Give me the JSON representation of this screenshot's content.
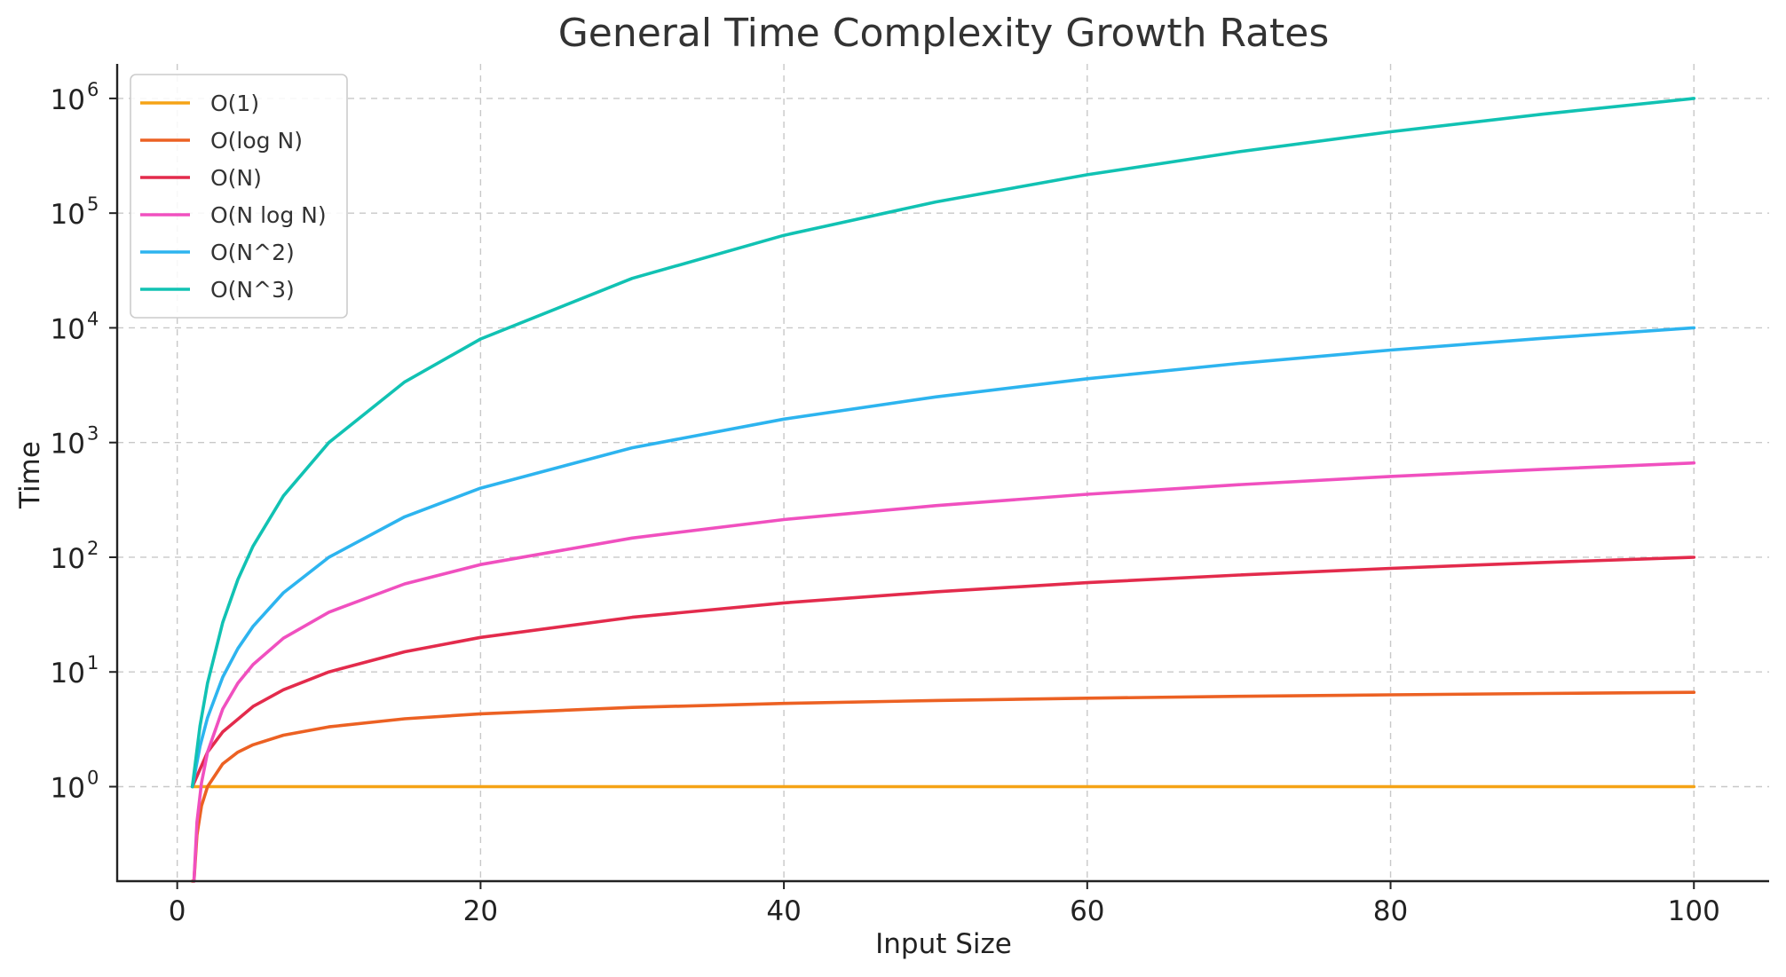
{
  "chart_data": {
    "type": "line",
    "title": "General Time Complexity Growth Rates",
    "xlabel": "Input Size",
    "ylabel": "Time",
    "yscale": "log",
    "xlim": [
      -3.96,
      104.96
    ],
    "ylim": [
      0.15,
      2000000
    ],
    "grid": true,
    "legend_position": "top-left",
    "x_ticks": [
      0,
      20,
      40,
      60,
      80,
      100
    ],
    "y_ticks": [
      {
        "base": "10",
        "exp": "0",
        "value": 1
      },
      {
        "base": "10",
        "exp": "1",
        "value": 10
      },
      {
        "base": "10",
        "exp": "2",
        "value": 100
      },
      {
        "base": "10",
        "exp": "3",
        "value": 1000
      },
      {
        "base": "10",
        "exp": "4",
        "value": 10000
      },
      {
        "base": "10",
        "exp": "5",
        "value": 100000
      },
      {
        "base": "10",
        "exp": "6",
        "value": 1000000
      }
    ],
    "series": [
      {
        "name": "O(1)",
        "color": "#f5a316",
        "x": [
          1,
          2,
          5,
          10,
          20,
          40,
          60,
          80,
          100
        ],
        "y": [
          1,
          1,
          1,
          1,
          1,
          1,
          1,
          1,
          1
        ]
      },
      {
        "name": "O(log N)",
        "color": "#ec6123",
        "x": [
          1,
          1.1,
          1.3,
          1.6,
          2,
          3,
          4,
          5,
          7,
          10,
          15,
          20,
          30,
          40,
          50,
          60,
          70,
          80,
          90,
          100
        ],
        "y": [
          0.15,
          0.14,
          0.38,
          0.68,
          1,
          1.58,
          2,
          2.32,
          2.81,
          3.32,
          3.91,
          4.32,
          4.91,
          5.32,
          5.64,
          5.91,
          6.13,
          6.32,
          6.49,
          6.64
        ]
      },
      {
        "name": "O(N)",
        "color": "#e32b4c",
        "x": [
          1,
          2,
          3,
          5,
          7,
          10,
          15,
          20,
          30,
          40,
          50,
          60,
          70,
          80,
          90,
          100
        ],
        "y": [
          1,
          2,
          3,
          5,
          7,
          10,
          15,
          20,
          30,
          40,
          50,
          60,
          70,
          80,
          90,
          100
        ]
      },
      {
        "name": "O(N log N)",
        "color": "#f050bf",
        "x": [
          1.1,
          1.3,
          1.6,
          2,
          3,
          4,
          5,
          7,
          10,
          15,
          20,
          30,
          40,
          50,
          60,
          70,
          80,
          90,
          100
        ],
        "y": [
          0.15,
          0.49,
          1.08,
          2,
          4.75,
          8,
          11.6,
          19.7,
          33.2,
          58.6,
          86.4,
          147,
          213,
          282,
          354,
          429,
          506,
          584,
          664
        ]
      },
      {
        "name": "O(N^2)",
        "color": "#2db4ef",
        "x": [
          1,
          1.5,
          2,
          3,
          4,
          5,
          7,
          10,
          15,
          20,
          30,
          40,
          50,
          60,
          70,
          80,
          90,
          100
        ],
        "y": [
          1,
          2.25,
          4,
          9,
          16,
          25,
          49,
          100,
          225,
          400,
          900,
          1600,
          2500,
          3600,
          4900,
          6400,
          8100,
          10000
        ]
      },
      {
        "name": "O(N^3)",
        "color": "#11c2b3",
        "x": [
          1,
          1.5,
          2,
          3,
          4,
          5,
          7,
          10,
          15,
          20,
          30,
          40,
          50,
          60,
          70,
          80,
          90,
          100
        ],
        "y": [
          1,
          3.375,
          8,
          27,
          64,
          125,
          343,
          1000,
          3375,
          8000,
          27000,
          64000,
          125000,
          216000,
          343000,
          512000,
          729000,
          1000000
        ]
      }
    ]
  }
}
